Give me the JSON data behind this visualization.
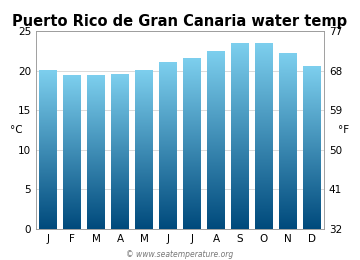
{
  "title": "Puerto Rico de Gran Canaria water temp",
  "months": [
    "J",
    "F",
    "M",
    "A",
    "M",
    "J",
    "J",
    "A",
    "S",
    "O",
    "N",
    "D"
  ],
  "values_c": [
    20.1,
    19.4,
    19.4,
    19.6,
    20.1,
    21.1,
    21.6,
    22.4,
    23.5,
    23.5,
    22.2,
    20.6
  ],
  "ylim_c": [
    0,
    25
  ],
  "yticks_c": [
    0,
    5,
    10,
    15,
    20,
    25
  ],
  "yticks_f": [
    32,
    41,
    50,
    59,
    68,
    77
  ],
  "ylabel_left": "°C",
  "ylabel_right": "°F",
  "bar_color_top": "#7dcfee",
  "bar_color_bottom": "#004a7c",
  "background_color": "#ffffff",
  "grid_color": "#cccccc",
  "title_fontsize": 10.5,
  "axis_fontsize": 7.5,
  "tick_fontsize": 7.5,
  "watermark": "© www.seatemperature.org"
}
